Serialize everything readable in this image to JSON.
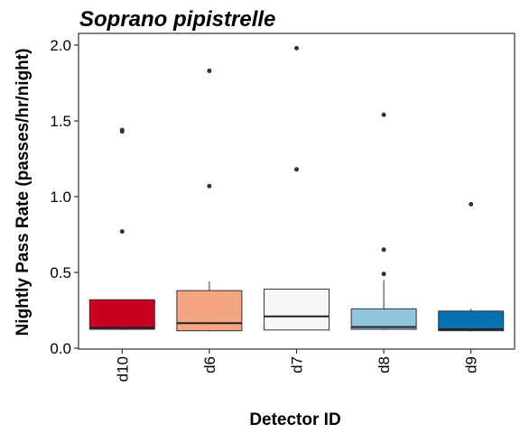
{
  "chart_data": {
    "type": "box",
    "title": "Soprano pipistrelle",
    "xlabel": "Detector ID",
    "ylabel": "Nightly Pass Rate (passes/hr/night)",
    "ylim": [
      0,
      2.08
    ],
    "y_ticks": [
      "0.0",
      "0.5",
      "1.0",
      "1.5",
      "2.0"
    ],
    "y_tick_values": [
      0,
      0.5,
      1.0,
      1.5,
      2.0
    ],
    "grid": false,
    "legend": "none",
    "categories": [
      "d10",
      "d6",
      "d7",
      "d8",
      "d9"
    ],
    "boxes": [
      {
        "name": "d10",
        "color": "#ca0020",
        "whisker_low": 0.12,
        "q1": 0.125,
        "median": 0.135,
        "q3": 0.32,
        "whisker_high": 0.32,
        "outliers": [
          0.77,
          1.43,
          1.44
        ]
      },
      {
        "name": "d6",
        "color": "#f4a582",
        "whisker_low": 0.11,
        "q1": 0.115,
        "median": 0.165,
        "q3": 0.38,
        "whisker_high": 0.44,
        "outliers": [
          1.07,
          1.83
        ]
      },
      {
        "name": "d7",
        "color": "#f7f7f7",
        "whisker_low": 0.12,
        "q1": 0.12,
        "median": 0.21,
        "q3": 0.39,
        "whisker_high": 0.39,
        "outliers": [
          1.18,
          1.98
        ]
      },
      {
        "name": "d8",
        "color": "#92c5de",
        "whisker_low": 0.12,
        "q1": 0.125,
        "median": 0.14,
        "q3": 0.26,
        "whisker_high": 0.45,
        "outliers": [
          0.49,
          0.65,
          1.54
        ]
      },
      {
        "name": "d9",
        "color": "#0571b0",
        "whisker_low": 0.11,
        "q1": 0.115,
        "median": 0.125,
        "q3": 0.245,
        "whisker_high": 0.26,
        "outliers": [
          0.95
        ]
      }
    ]
  }
}
